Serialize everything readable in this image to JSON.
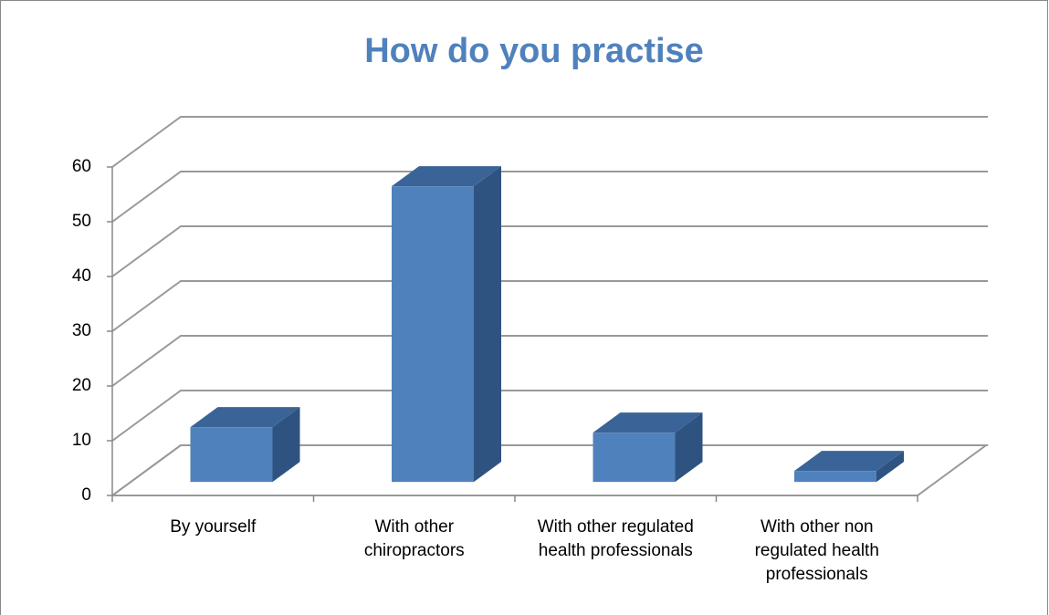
{
  "chart_data": {
    "type": "bar3d",
    "title": "How do you practise",
    "categories": [
      "By yourself",
      "With other chiropractors",
      "With other regulated health professionals",
      "With other non regulated health professionals"
    ],
    "values": [
      10,
      54,
      9,
      2
    ],
    "color": "#4f81bd",
    "ylim": [
      0,
      60
    ],
    "yticks": [
      0,
      10,
      20,
      30,
      40,
      50,
      60
    ],
    "grid": true
  }
}
